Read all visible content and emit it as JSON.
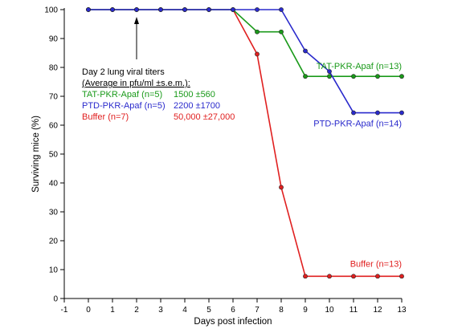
{
  "chart_data": {
    "type": "line",
    "title": "",
    "xlabel": "Days post infection",
    "ylabel": "Surviving mice (%)",
    "xlim": [
      -1,
      13
    ],
    "ylim": [
      0,
      100
    ],
    "x_ticks": [
      "-1",
      "0",
      "1",
      "2",
      "3",
      "4",
      "5",
      "6",
      "7",
      "8",
      "9",
      "10",
      "11",
      "12",
      "13"
    ],
    "y_ticks": [
      "0",
      "10",
      "20",
      "30",
      "40",
      "50",
      "60",
      "70",
      "80",
      "90",
      "100"
    ],
    "grid": false,
    "x": [
      0,
      1,
      2,
      3,
      4,
      5,
      6,
      7,
      8,
      9,
      10,
      11,
      12,
      13
    ],
    "series": [
      {
        "name": "TAT-PKR-Apaf (n=13)",
        "color": "#1a9a1a",
        "values": [
          100,
          100,
          100,
          100,
          100,
          100,
          100,
          92.3,
          92.3,
          76.9,
          76.9,
          76.9,
          76.9,
          76.9
        ]
      },
      {
        "name": "PTD-PKR-Apaf (n=14)",
        "color": "#2a2acc",
        "values": [
          100,
          100,
          100,
          100,
          100,
          100,
          100,
          100,
          100,
          85.7,
          78.6,
          64.3,
          64.3,
          64.3
        ]
      },
      {
        "name": "Buffer (n=13)",
        "color": "#e02020",
        "values": [
          100,
          100,
          100,
          100,
          100,
          100,
          100,
          84.6,
          38.5,
          7.7,
          7.7,
          7.7,
          7.7,
          7.7
        ]
      }
    ],
    "annotation": {
      "arrow_x": 2,
      "heading_line1": "Day 2 lung viral titers",
      "heading_line2": "(Average in pfu/ml ±s.e.m.):",
      "rows": [
        {
          "label": "TAT-PKR-Apaf (n=5)",
          "value": "1500 ±560",
          "color": "#1a9a1a"
        },
        {
          "label": "PTD-PKR-Apaf (n=5)",
          "value": "2200 ±1700",
          "color": "#2a2acc"
        },
        {
          "label": "Buffer (n=7)",
          "value": "50,000 ±27,000",
          "color": "#e02020"
        }
      ]
    }
  }
}
